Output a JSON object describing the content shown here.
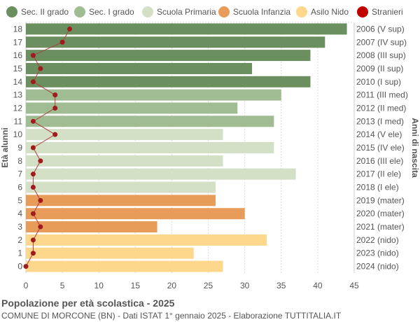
{
  "chart_data": {
    "type": "bar",
    "orientation": "horizontal",
    "title": "Popolazione per età scolastica - 2025",
    "subtitle": "COMUNE DI MORCONE (BN) - Dati ISTAT 1° gennaio 2025 - Elaborazione TUTTITALIA.IT",
    "ylabel": "Età alunni",
    "ylabel_right": "Anni di nascita",
    "xlim": [
      0,
      45
    ],
    "xticks": [
      0,
      5,
      10,
      15,
      20,
      25,
      30,
      35,
      40,
      45
    ],
    "grid": true,
    "legend_position": "top",
    "legend": [
      {
        "name": "Sec. II grado",
        "color": "#6b8f5e"
      },
      {
        "name": "Sec. I grado",
        "color": "#a0bc92"
      },
      {
        "name": "Scuola Primaria",
        "color": "#d3e0c6"
      },
      {
        "name": "Scuola Infanzia",
        "color": "#e89c5a"
      },
      {
        "name": "Asilo Nido",
        "color": "#fdd88c"
      },
      {
        "name": "Stranieri",
        "color": "#c00000"
      }
    ],
    "categories": [
      0,
      1,
      2,
      3,
      4,
      5,
      6,
      7,
      8,
      9,
      10,
      11,
      12,
      13,
      14,
      15,
      16,
      17,
      18
    ],
    "birth_years": [
      "2024 (nido)",
      "2023 (nido)",
      "2022 (nido)",
      "2021 (mater)",
      "2020 (mater)",
      "2019 (mater)",
      "2018 (I ele)",
      "2017 (II ele)",
      "2016 (III ele)",
      "2015 (IV ele)",
      "2014 (V ele)",
      "2013 (I med)",
      "2012 (II med)",
      "2011 (III med)",
      "2010 (I sup)",
      "2009 (II sup)",
      "2008 (III sup)",
      "2007 (IV sup)",
      "2006 (V sup)"
    ],
    "groups": [
      4,
      4,
      4,
      3,
      3,
      3,
      2,
      2,
      2,
      2,
      2,
      1,
      1,
      1,
      0,
      0,
      0,
      0,
      0
    ],
    "values": [
      27,
      23,
      33,
      18,
      30,
      26,
      26,
      37,
      27,
      34,
      27,
      34,
      29,
      35,
      39,
      31,
      39,
      41,
      44
    ],
    "stranieri": [
      0,
      1,
      1,
      2,
      1,
      2,
      1,
      1,
      2,
      1,
      4,
      1,
      4,
      4,
      1,
      2,
      1,
      5,
      6
    ]
  }
}
